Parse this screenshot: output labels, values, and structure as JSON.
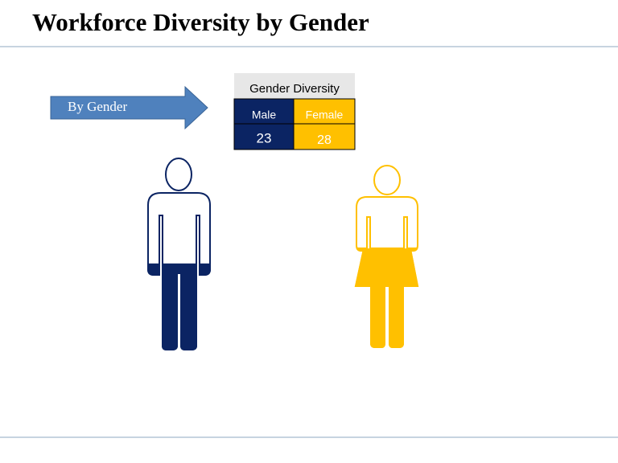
{
  "chart_data": {
    "type": "pictogram",
    "title": "Workforce Diversity by Gender",
    "annotation": "By Gender",
    "table_title": "Gender Diversity",
    "categories": [
      "Male",
      "Female"
    ],
    "values": [
      23,
      28
    ],
    "colors": [
      "#0b2463",
      "#ffc000"
    ]
  }
}
